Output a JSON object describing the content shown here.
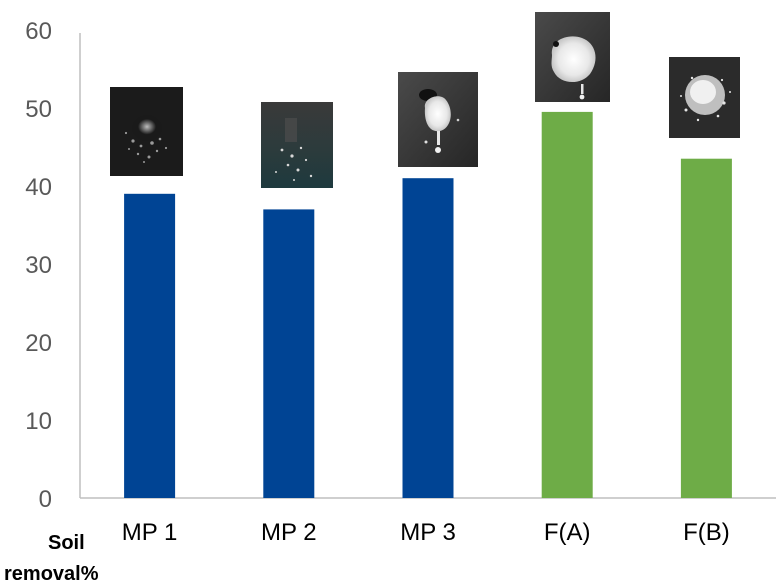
{
  "chart_data": {
    "type": "bar",
    "categories": [
      "MP 1",
      "MP 2",
      "MP 3",
      "F(A)",
      "F(B)"
    ],
    "values": [
      39,
      37,
      41,
      49.5,
      43.5
    ],
    "bar_colors": [
      "#004494",
      "#004494",
      "#004494",
      "#6eac47",
      "#6eac47"
    ],
    "ylabel_line1": "Soil",
    "ylabel_line2": "removal%",
    "ylim": [
      0,
      60
    ],
    "yticks": [
      0,
      10,
      20,
      30,
      40,
      50,
      60
    ],
    "ytick_labels": [
      "0",
      "10",
      "20",
      "30",
      "40",
      "50",
      "60"
    ],
    "grid": false,
    "legend": "none",
    "annotations": [
      {
        "kind": "photo",
        "category": "MP 1",
        "description": "small dim speckled spot"
      },
      {
        "kind": "photo",
        "category": "MP 2",
        "description": "faint scattered droplets"
      },
      {
        "kind": "photo",
        "category": "MP 3",
        "description": "bright blob with drips"
      },
      {
        "kind": "photo",
        "category": "F(A)",
        "description": "large bright blob"
      },
      {
        "kind": "photo",
        "category": "F(B)",
        "description": "bright speckled cluster"
      }
    ]
  }
}
